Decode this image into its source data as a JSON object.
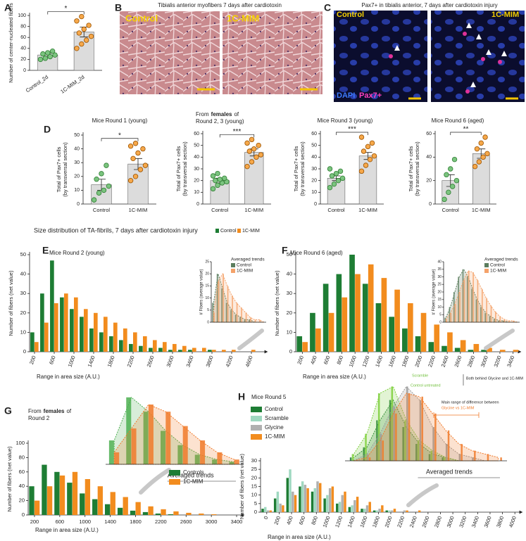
{
  "panel_labels": [
    "A",
    "B",
    "C",
    "D",
    "E",
    "F",
    "G",
    "H"
  ],
  "figure_b": {
    "title": "Tibialis anterior myofibers 7 days after cardiotoxin",
    "labels": [
      "Control",
      "1C-MIM"
    ]
  },
  "figure_c": {
    "title": "Pax7+ in tibialis anterior, 7 days after cardiotoxin injury",
    "labels": [
      "Control",
      "1C-MIM"
    ],
    "stain_labels": [
      "DAPI",
      "Pax7+"
    ]
  },
  "size_header": {
    "title": "Size distribution of TA-fibrils, 7 days after cardiotoxin injury",
    "legend": [
      "Control",
      "1C-MIM"
    ],
    "colors": [
      "#1e7d34",
      "#f28c1e"
    ]
  },
  "chart_data": [
    {
      "type": "bar",
      "categories": [
        "Control_2d",
        "1C-MIM_2d"
      ],
      "values": [
        28,
        70
      ],
      "errors": [
        3,
        9
      ],
      "points": [
        [
          20,
          22,
          25,
          28,
          30,
          32,
          35
        ],
        [
          40,
          48,
          55,
          62,
          68,
          75,
          82,
          90,
          98
        ]
      ],
      "ylabel": "Number of center-nucleated fibers",
      "ylim": [
        0,
        100
      ],
      "yticks": [
        0,
        20,
        40,
        60,
        80,
        100
      ],
      "significance": "*",
      "color": "#dcdcdc",
      "point_colors": [
        "#7bc47f",
        "#f6a84a"
      ],
      "point_strokes": [
        "#2f7d32",
        "#9a5200"
      ]
    },
    {
      "type": "bar",
      "title": "Mice Round 1 (young)",
      "categories": [
        "Control",
        "1C-MIM"
      ],
      "values": [
        14,
        29
      ],
      "errors": [
        4,
        4
      ],
      "points": [
        [
          3,
          8,
          10,
          13,
          18,
          22,
          28
        ],
        [
          17,
          20,
          25,
          28,
          33,
          37,
          40,
          42,
          44
        ]
      ],
      "ylabel": [
        "Total of Pax7+ cells",
        "(by transversal section)"
      ],
      "ylim": [
        0,
        50
      ],
      "yticks": [
        0,
        10,
        20,
        30,
        40,
        50
      ],
      "significance": "*",
      "color": "#dcdcdc",
      "point_colors": [
        "#7bc47f",
        "#f6a84a"
      ],
      "point_strokes": [
        "#2f7d32",
        "#9a5200"
      ]
    },
    {
      "type": "bar",
      "title_prefix": "From",
      "title_bold": "females",
      "title_suffix": "of",
      "title_line2": "Round 2, 3 (young)",
      "categories": [
        "Control",
        "1C-MIM"
      ],
      "values": [
        20,
        44
      ],
      "errors": [
        2,
        3
      ],
      "points": [
        [
          13,
          16,
          18,
          19,
          20,
          21,
          22,
          24,
          26
        ],
        [
          32,
          36,
          40,
          42,
          45,
          47,
          50,
          52,
          55
        ]
      ],
      "ylabel": [
        "Total of Pax7+ cells",
        "(by transversal section)"
      ],
      "ylim": [
        0,
        60
      ],
      "yticks": [
        0,
        10,
        20,
        30,
        40,
        50,
        60
      ],
      "significance": "***",
      "color": "#dcdcdc",
      "point_colors": [
        "#7bc47f",
        "#f6a84a"
      ],
      "point_strokes": [
        "#2f7d32",
        "#9a5200"
      ]
    },
    {
      "type": "bar",
      "title": "Mice Round 3 (young)",
      "categories": [
        "Control",
        "1C-MIM"
      ],
      "values": [
        22,
        41
      ],
      "errors": [
        2,
        3
      ],
      "points": [
        [
          14,
          17,
          20,
          22,
          24,
          26,
          28,
          30
        ],
        [
          28,
          33,
          38,
          41,
          45,
          49,
          52,
          57
        ]
      ],
      "ylabel": [
        "Total of Pax7+ cells",
        "(by transversal section)"
      ],
      "ylim": [
        0,
        60
      ],
      "yticks": [
        0,
        10,
        20,
        30,
        40,
        50,
        60
      ],
      "significance": "***",
      "color": "#dcdcdc",
      "point_colors": [
        "#7bc47f",
        "#f6a84a"
      ],
      "point_strokes": [
        "#2f7d32",
        "#9a5200"
      ]
    },
    {
      "type": "bar",
      "title": "Mice Round 6 (aged)",
      "categories": [
        "Control",
        "1C-MIM"
      ],
      "values": [
        20,
        43
      ],
      "errors": [
        5,
        4
      ],
      "points": [
        [
          4,
          10,
          15,
          20,
          25,
          30,
          38
        ],
        [
          32,
          36,
          40,
          43,
          47,
          52,
          57
        ]
      ],
      "ylabel": [
        "Total of Pax7+ cells",
        "(by transversal section)"
      ],
      "ylim": [
        0,
        60
      ],
      "yticks": [
        0,
        20,
        40,
        60
      ],
      "significance": "**",
      "color": "#dcdcdc",
      "point_colors": [
        "#7bc47f",
        "#f6a84a"
      ],
      "point_strokes": [
        "#2f7d32",
        "#9a5200"
      ]
    },
    {
      "type": "grouped_bar",
      "title": "Mice Round 2 (young)",
      "ylabel": "Number of  fibers (net value)",
      "xlabel": "Range in area size (A.U.)",
      "x": [
        200,
        400,
        600,
        800,
        1000,
        1200,
        1400,
        1600,
        1800,
        2000,
        2200,
        2400,
        2600,
        2800,
        3000,
        3200,
        3400,
        3600,
        3800,
        4000,
        4200,
        4400,
        4600,
        4800
      ],
      "series": [
        {
          "name": "Control",
          "color": "#1e7d34",
          "values": [
            10,
            30,
            47,
            28,
            22,
            18,
            12,
            10,
            8,
            6,
            4,
            3,
            2,
            2,
            1,
            1,
            1,
            0,
            1,
            0,
            0,
            0,
            0,
            0
          ]
        },
        {
          "name": "1C-MIM",
          "color": "#f28c1e",
          "values": [
            5,
            15,
            25,
            30,
            28,
            22,
            20,
            18,
            15,
            12,
            10,
            8,
            6,
            5,
            4,
            3,
            2,
            2,
            1,
            1,
            1,
            0,
            1,
            0
          ]
        }
      ],
      "xlim": [
        100,
        4900
      ],
      "xticks": [
        200,
        600,
        1000,
        1400,
        1800,
        2200,
        2600,
        3000,
        3400,
        3800,
        4200,
        4600
      ],
      "ylim": [
        0,
        50
      ],
      "yticks": [
        0,
        10,
        20,
        30,
        40,
        50
      ],
      "inset": {
        "title": "Averaged trends",
        "ylabel": "# Fibers (average value)",
        "x": [
          200,
          600,
          1000,
          1400,
          1800,
          2200,
          2600,
          3000,
          3400,
          3800,
          4200,
          4600
        ],
        "series": [
          {
            "color": "#5b7d5e",
            "values": [
              8,
              20,
              14,
              8,
              5,
              3,
              2,
              1,
              1,
              0,
              0,
              0
            ]
          },
          {
            "color": "#f4a26a",
            "values": [
              4,
              17,
              20,
              15,
              11,
              8,
              6,
              4,
              2,
              1,
              1,
              0
            ]
          }
        ],
        "xlim": [
          0,
          4800
        ],
        "ylim": [
          0,
          25
        ],
        "yticks": [
          0,
          5,
          10,
          15,
          20,
          25
        ]
      }
    },
    {
      "type": "grouped_bar",
      "title": "Mice Round 6 (aged)",
      "ylabel": "Number of  fibers (net value)",
      "xlabel": "Range in area size (A.U.)",
      "x": [
        200,
        400,
        600,
        800,
        1000,
        1200,
        1400,
        1600,
        1800,
        2000,
        2200,
        2400,
        2600,
        2800,
        3000,
        3200,
        3400
      ],
      "series": [
        {
          "name": "Control",
          "color": "#1e7d34",
          "values": [
            8,
            20,
            35,
            40,
            50,
            35,
            25,
            18,
            12,
            8,
            5,
            3,
            2,
            1,
            1,
            0,
            0
          ]
        },
        {
          "name": "1C-MIM",
          "color": "#f28c1e",
          "values": [
            5,
            12,
            20,
            28,
            40,
            45,
            38,
            32,
            25,
            20,
            14,
            10,
            6,
            4,
            2,
            1,
            1
          ]
        }
      ],
      "xlim": [
        100,
        3500
      ],
      "xticks": [
        200,
        400,
        600,
        800,
        1000,
        1200,
        1400,
        1600,
        1800,
        2000,
        2200,
        2400,
        2600,
        2800,
        3000,
        3200,
        3400
      ],
      "ylim": [
        0,
        50
      ],
      "yticks": [
        0,
        10,
        20,
        30,
        40,
        50
      ],
      "inset": {
        "title": "Averaged trends",
        "ylabel": "# Fibers (average value)",
        "x": [
          200,
          400,
          600,
          800,
          1000,
          1200,
          1400,
          1600,
          1800,
          2000,
          2200,
          2400,
          2600,
          2800,
          3000,
          3200,
          3400
        ],
        "series": [
          {
            "color": "#5b7d5e",
            "values": [
              3,
              10,
              20,
              30,
              35,
              30,
              22,
              15,
              10,
              6,
              4,
              2,
              1,
              1,
              0,
              0,
              0
            ]
          },
          {
            "color": "#f4a26a",
            "values": [
              2,
              6,
              12,
              20,
              28,
              34,
              33,
              28,
              22,
              16,
              11,
              7,
              4,
              2,
              1,
              1,
              0
            ]
          }
        ],
        "xlim": [
          100,
          3500
        ],
        "ylim": [
          0,
          40
        ],
        "yticks": [
          0,
          5,
          10,
          15,
          20,
          25,
          30,
          35,
          40
        ]
      }
    },
    {
      "type": "grouped_bar",
      "title_prefix": "From",
      "title_bold": "females",
      "title_suffix": "of",
      "title_line2": "Round 2",
      "ylabel": "Number of  fibers (net value)",
      "xlabel": "Range in area size (A.U.)",
      "x": [
        200,
        400,
        600,
        800,
        1000,
        1200,
        1400,
        1600,
        1800,
        2000,
        2200,
        2400,
        2600,
        2800,
        3000,
        3200,
        3400
      ],
      "series": [
        {
          "name": "Controls",
          "color": "#1e7d34",
          "values": [
            40,
            70,
            60,
            45,
            30,
            22,
            15,
            10,
            6,
            4,
            2,
            1,
            0,
            0,
            0,
            0,
            0
          ]
        },
        {
          "name": "1C-MIM",
          "color": "#f28c1e",
          "values": [
            20,
            40,
            55,
            60,
            50,
            40,
            32,
            25,
            18,
            12,
            8,
            5,
            3,
            2,
            1,
            0,
            0
          ]
        }
      ],
      "xlim": [
        100,
        3500
      ],
      "xticks": [
        200,
        600,
        1000,
        1400,
        1800,
        2200,
        2600,
        3000,
        3400
      ],
      "ylim": [
        0,
        100
      ],
      "yticks": [
        0,
        20,
        40,
        60,
        80,
        100
      ],
      "inset": {
        "title": "Averaged trends",
        "x": [
          200,
          600,
          1000,
          1400,
          1800,
          2200,
          2600,
          3000
        ],
        "series": [
          {
            "color": "#4caf50",
            "values": [
              10,
              28,
              22,
              14,
              8,
              4,
              2,
              1
            ]
          },
          {
            "color": "#f07a2a",
            "values": [
              5,
              15,
              25,
              22,
              16,
              10,
              5,
              2
            ]
          }
        ],
        "xlim": [
          0,
          3200
        ],
        "ylim": [
          0,
          30
        ]
      }
    },
    {
      "type": "grouped_bar",
      "title": "Mice Round 5",
      "ylabel": "Number of  fibers (net value)",
      "xlabel": "Range in area size (A.U.)",
      "x": [
        0,
        200,
        400,
        600,
        800,
        1000,
        1200,
        1400,
        1600,
        1800,
        2000,
        2200,
        2400,
        2600,
        2800,
        3000,
        3200,
        3400,
        3600,
        3800,
        4000
      ],
      "series": [
        {
          "name": "Control",
          "color": "#1e7d34",
          "values": [
            2,
            8,
            20,
            15,
            12,
            8,
            5,
            3,
            2,
            1,
            1,
            0,
            0,
            0,
            0,
            0,
            0,
            0,
            0,
            0,
            0
          ]
        },
        {
          "name": "Scramble",
          "color": "#9fd8c0",
          "values": [
            3,
            12,
            25,
            18,
            14,
            10,
            6,
            4,
            2,
            1,
            1,
            0,
            0,
            0,
            0,
            0,
            0,
            0,
            0,
            0,
            0
          ]
        },
        {
          "name": "Glycine",
          "color": "#b0b0b0",
          "values": [
            1,
            5,
            12,
            16,
            18,
            14,
            10,
            7,
            4,
            2,
            1,
            1,
            0,
            0,
            0,
            0,
            0,
            0,
            0,
            0,
            0
          ]
        },
        {
          "name": "1C-MIM",
          "color": "#f28c1e",
          "values": [
            1,
            4,
            10,
            14,
            17,
            15,
            12,
            9,
            6,
            4,
            2,
            1,
            1,
            0,
            0,
            0,
            0,
            0,
            0,
            0,
            0
          ]
        }
      ],
      "xlim": [
        -100,
        4100
      ],
      "xticks": [
        0,
        200,
        400,
        600,
        800,
        1000,
        1200,
        1400,
        1600,
        1800,
        2000,
        2200,
        2400,
        2600,
        2800,
        3000,
        3200,
        3400,
        3600,
        3800,
        4000
      ],
      "ylim": [
        0,
        30
      ],
      "yticks": [
        0,
        5,
        10,
        15,
        20,
        25,
        30
      ],
      "annotations": [
        "Scramble",
        "Control untreated",
        "Both behind Glycine and 1C-MIM",
        "Main range of difference between",
        "Glycine vs 1C-MIM"
      ],
      "inset": {
        "title": "Averaged trends",
        "x": [
          400,
          700,
          1000,
          1300,
          1600,
          1900,
          2200,
          2500,
          2800,
          3100,
          3400,
          3700
        ],
        "series": [
          {
            "color": "#1e7d34",
            "values": [
              1,
              4,
              12,
              18,
              10,
              5,
              2,
              1,
              0,
              0,
              0,
              0
            ]
          },
          {
            "color": "#7ccf3a",
            "values": [
              2,
              8,
              20,
              22,
              12,
              6,
              3,
              1,
              0,
              0,
              0,
              0
            ]
          },
          {
            "color": "#9a9a9a",
            "values": [
              0,
              2,
              8,
              16,
              22,
              18,
              10,
              5,
              2,
              1,
              0,
              0
            ]
          },
          {
            "color": "#f07a2a",
            "values": [
              0,
              1,
              6,
              14,
              20,
              19,
              14,
              9,
              5,
              3,
              2,
              1
            ]
          }
        ],
        "xlim": [
          200,
          3900
        ],
        "ylim": [
          0,
          25
        ]
      }
    }
  ]
}
